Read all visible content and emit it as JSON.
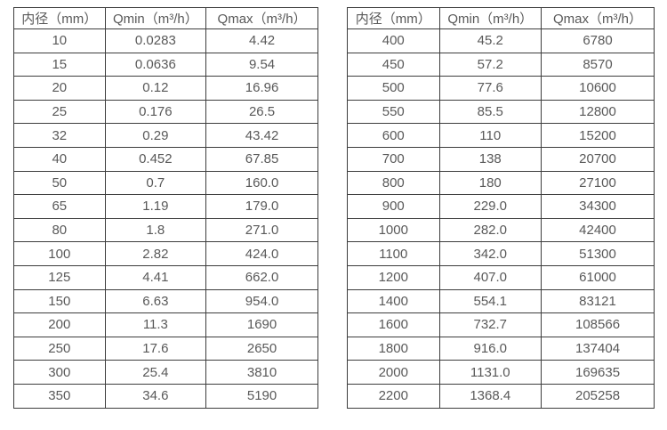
{
  "colors": {
    "background": "#ffffff",
    "border": "#3d3d3d",
    "text": "#595959"
  },
  "tables": [
    {
      "id": "flow-table-small-diameters",
      "headers": [
        "内径（mm）",
        "Qmin（m³/h）",
        "Qmax（m³/h）"
      ],
      "rows": [
        [
          "10",
          "0.0283",
          "4.42"
        ],
        [
          "15",
          "0.0636",
          "9.54"
        ],
        [
          "20",
          "0.12",
          "16.96"
        ],
        [
          "25",
          "0.176",
          "26.5"
        ],
        [
          "32",
          "0.29",
          "43.42"
        ],
        [
          "40",
          "0.452",
          "67.85"
        ],
        [
          "50",
          "0.7",
          "160.0"
        ],
        [
          "65",
          "1.19",
          "179.0"
        ],
        [
          "80",
          "1.8",
          "271.0"
        ],
        [
          "100",
          "2.82",
          "424.0"
        ],
        [
          "125",
          "4.41",
          "662.0"
        ],
        [
          "150",
          "6.63",
          "954.0"
        ],
        [
          "200",
          "11.3",
          "1690"
        ],
        [
          "250",
          "17.6",
          "2650"
        ],
        [
          "300",
          "25.4",
          "3810"
        ],
        [
          "350",
          "34.6",
          "5190"
        ]
      ]
    },
    {
      "id": "flow-table-large-diameters",
      "headers": [
        "内径（mm）",
        "Qmin（m³/h）",
        "Qmax（m³/h）"
      ],
      "rows": [
        [
          "400",
          "45.2",
          "6780"
        ],
        [
          "450",
          "57.2",
          "8570"
        ],
        [
          "500",
          "77.6",
          "10600"
        ],
        [
          "550",
          "85.5",
          "12800"
        ],
        [
          "600",
          "110",
          "15200"
        ],
        [
          "700",
          "138",
          "20700"
        ],
        [
          "800",
          "180",
          "27100"
        ],
        [
          "900",
          "229.0",
          "34300"
        ],
        [
          "1000",
          "282.0",
          "42400"
        ],
        [
          "1100",
          "342.0",
          "51300"
        ],
        [
          "1200",
          "407.0",
          "61000"
        ],
        [
          "1400",
          "554.1",
          "83121"
        ],
        [
          "1600",
          "732.7",
          "108566"
        ],
        [
          "1800",
          "916.0",
          "137404"
        ],
        [
          "2000",
          "1131.0",
          "169635"
        ],
        [
          "2200",
          "1368.4",
          "205258"
        ]
      ]
    }
  ]
}
